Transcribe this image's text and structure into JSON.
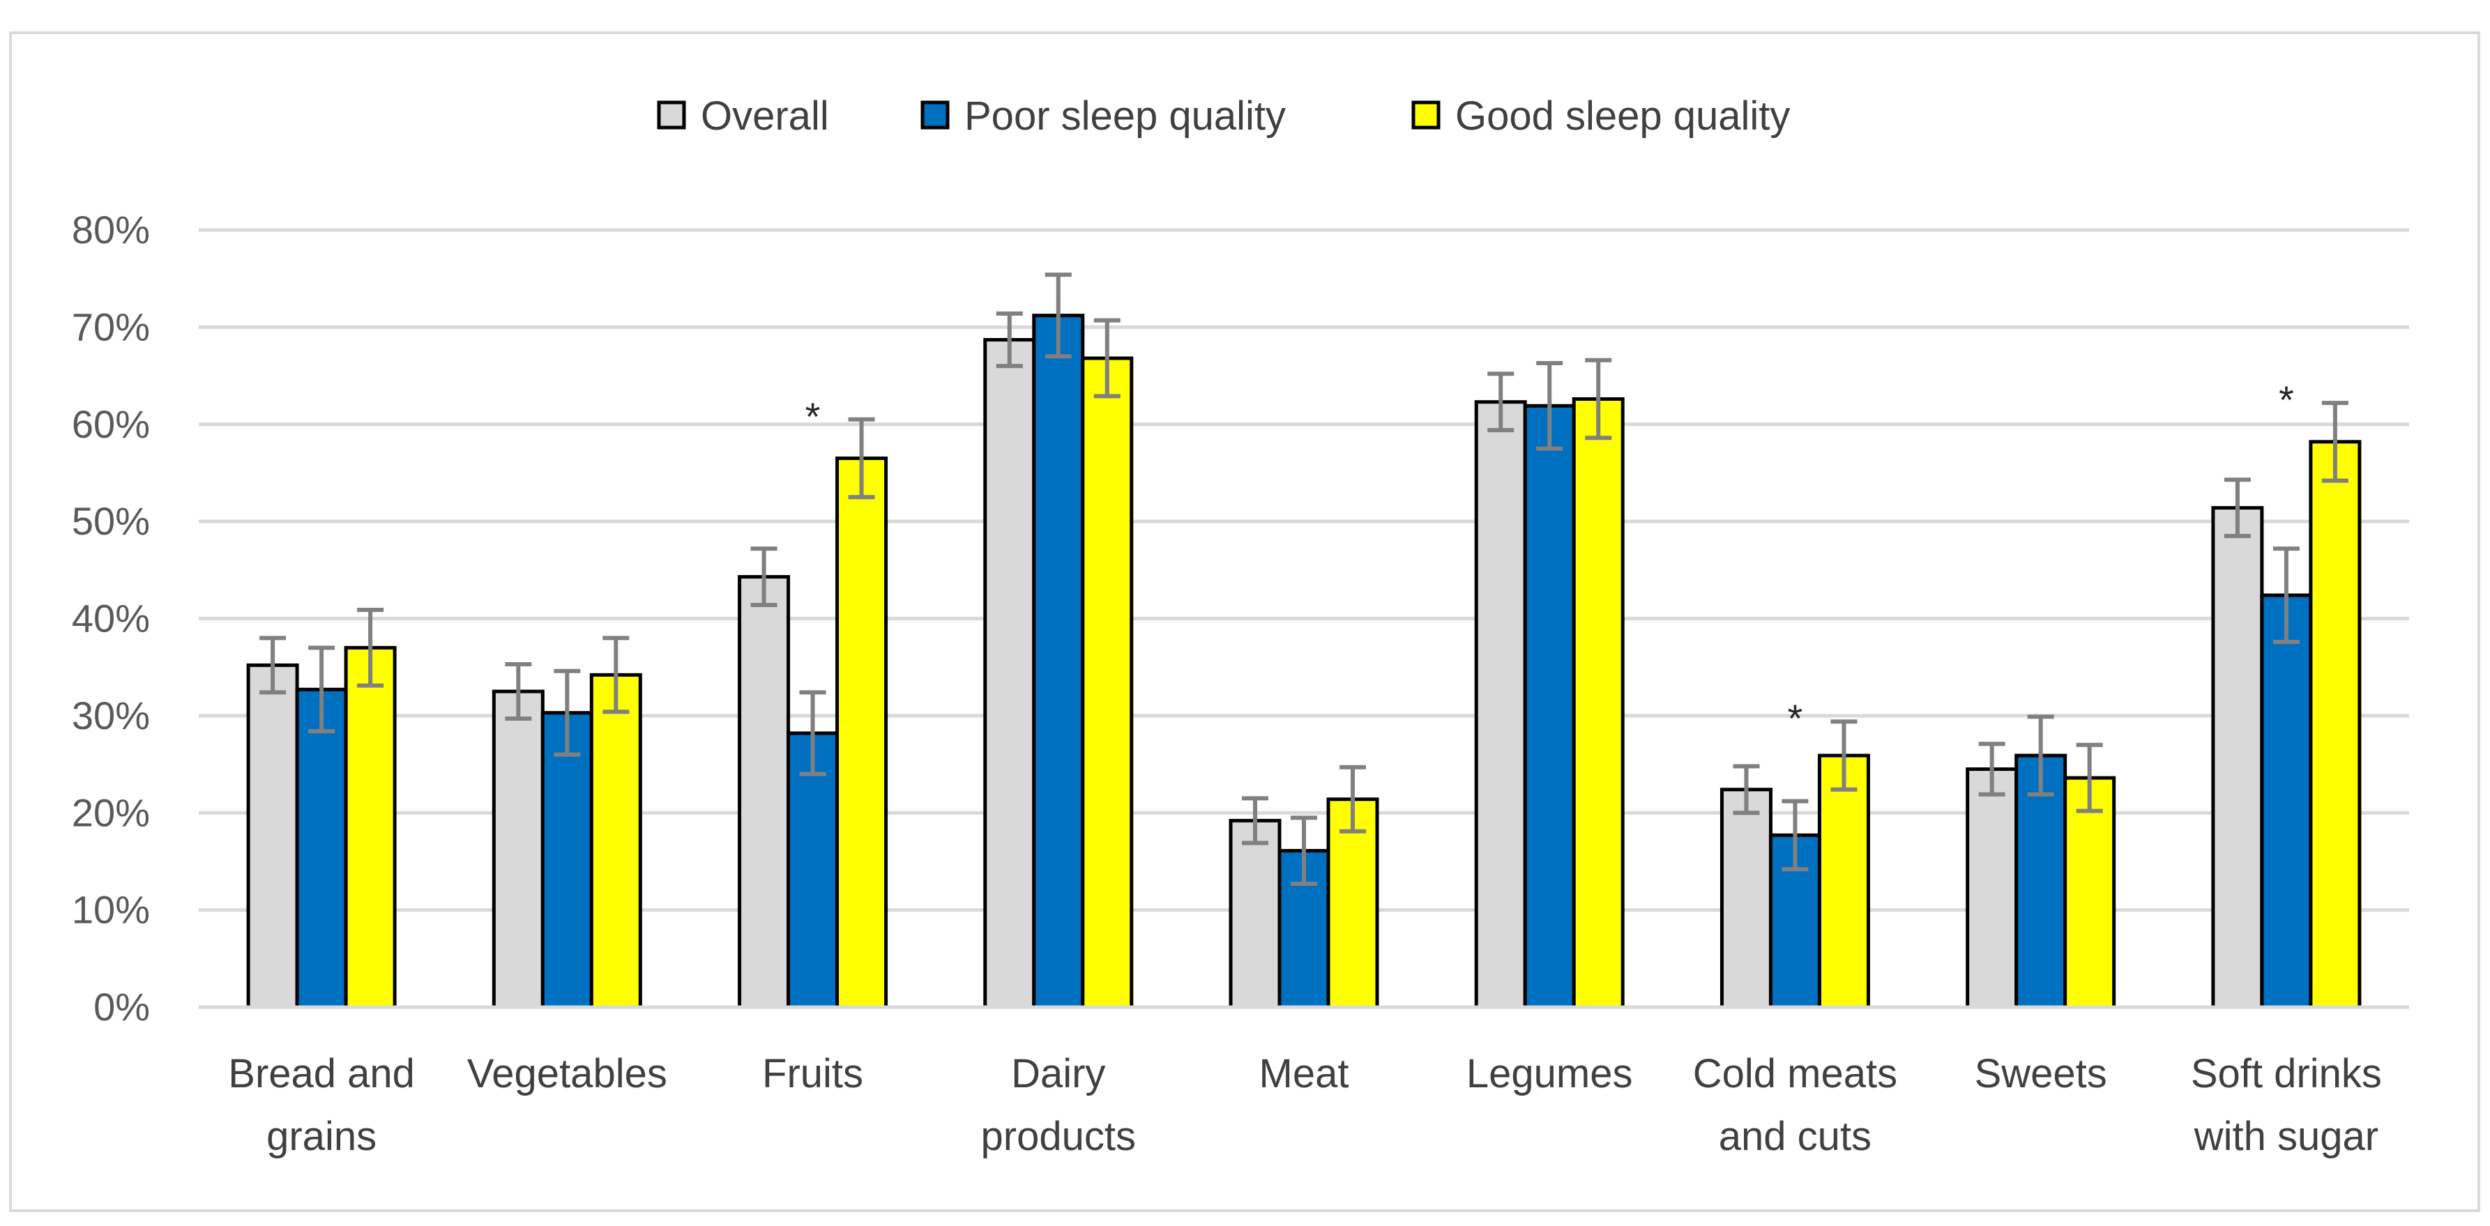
{
  "chart_data": {
    "type": "bar",
    "title": "",
    "xlabel": "",
    "ylabel": "",
    "ylim": [
      0,
      0.8
    ],
    "yticks": [
      0,
      0.1,
      0.2,
      0.3,
      0.4,
      0.5,
      0.6,
      0.7,
      0.8
    ],
    "ytick_labels": [
      "0%",
      "10%",
      "20%",
      "30%",
      "40%",
      "50%",
      "60%",
      "70%",
      "80%"
    ],
    "grid": true,
    "legend_position": "top-center",
    "categories": [
      [
        "Bread and",
        "grains"
      ],
      [
        "Vegetables"
      ],
      [
        "Fruits"
      ],
      [
        "Dairy",
        "products"
      ],
      [
        "Meat"
      ],
      [
        "Legumes"
      ],
      [
        "Cold meats",
        "and cuts"
      ],
      [
        "Sweets"
      ],
      [
        "Soft drinks",
        "with sugar"
      ]
    ],
    "series": [
      {
        "name": "Overall",
        "color": "#D9D9D9",
        "values": [
          0.352,
          0.325,
          0.443,
          0.687,
          0.192,
          0.623,
          0.224,
          0.245,
          0.514
        ],
        "error": [
          0.028,
          0.028,
          0.029,
          0.027,
          0.023,
          0.029,
          0.024,
          0.026,
          0.029
        ]
      },
      {
        "name": "Poor sleep quality",
        "color": "#0070C0",
        "values": [
          0.327,
          0.303,
          0.282,
          0.712,
          0.161,
          0.619,
          0.177,
          0.259,
          0.424
        ],
        "error": [
          0.043,
          0.043,
          0.042,
          0.042,
          0.034,
          0.044,
          0.035,
          0.04,
          0.048
        ]
      },
      {
        "name": "Good sleep quality",
        "color": "#FFFF00",
        "values": [
          0.37,
          0.342,
          0.565,
          0.668,
          0.214,
          0.626,
          0.259,
          0.236,
          0.582
        ],
        "error": [
          0.039,
          0.038,
          0.04,
          0.039,
          0.033,
          0.04,
          0.035,
          0.034,
          0.04
        ]
      }
    ],
    "annotations": [
      {
        "category_index": 2,
        "series_index": 1,
        "text": "*"
      },
      {
        "category_index": 6,
        "series_index": 1,
        "text": "*"
      },
      {
        "category_index": 8,
        "series_index": 1,
        "text": "*"
      }
    ]
  },
  "colors": {
    "background": "#FFFFFF",
    "frame_border": "#D9D9D9",
    "gridline": "#D9D9D9",
    "axis_line": "#D9D9D9",
    "bar_outline": "#000000",
    "error_bar": "#808080"
  }
}
